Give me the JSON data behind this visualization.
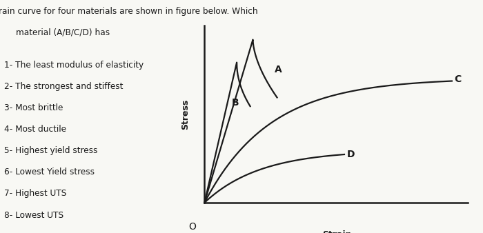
{
  "title_line1": "The stress- strain curve for four materials are shown in figure below. Which",
  "title_line2": "material (A/B/C/D) has",
  "questions": [
    "1- The least modulus of elasticity",
    "2- The strongest and stiffest",
    "3- Most brittle",
    "4- Most ductile",
    "5- Highest yield stress",
    "6- Lowest Yield stress",
    "7- Highest UTS",
    "8- Lowest UTS"
  ],
  "xlabel": "Strain",
  "ylabel": "Stress",
  "origin_label": "O",
  "curve_color": "#1a1a1a",
  "background_color": "#f8f8f4",
  "text_color": "#1a1a1a",
  "label_A": "A",
  "label_B": "B",
  "label_C": "C",
  "label_D": "D"
}
